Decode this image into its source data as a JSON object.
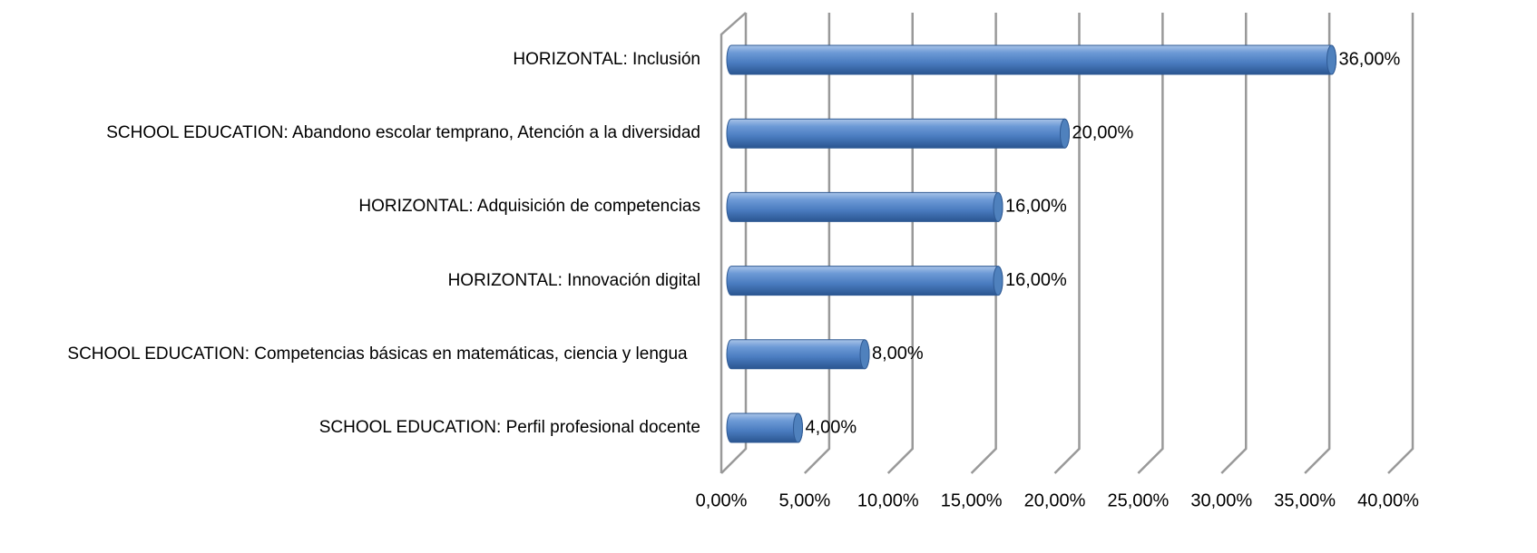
{
  "chart_data": {
    "type": "bar",
    "orientation": "horizontal",
    "categories": [
      "HORIZONTAL: Inclusión",
      "SCHOOL EDUCATION: Abandono escolar temprano, Atención a la diversidad",
      "HORIZONTAL: Adquisición de competencias",
      "HORIZONTAL: Innovación digital",
      "SCHOOL EDUCATION: Competencias básicas en matemáticas, ciencia y lengua",
      "SCHOOL EDUCATION: Perfil profesional docente"
    ],
    "values": [
      36,
      20,
      16,
      16,
      8,
      4
    ],
    "value_labels": [
      "36,00%",
      "20,00%",
      "16,00%",
      "16,00%",
      "8,00%",
      "4,00%"
    ],
    "color": "#4f81bd",
    "xlim": [
      0,
      40
    ],
    "xticks": [
      {
        "value": 0,
        "label": "0,00%"
      },
      {
        "value": 5,
        "label": "5,00%"
      },
      {
        "value": 10,
        "label": "10,00%"
      },
      {
        "value": 15,
        "label": "15,00%"
      },
      {
        "value": 20,
        "label": "20,00%"
      },
      {
        "value": 25,
        "label": "25,00%"
      },
      {
        "value": 30,
        "label": "30,00%"
      },
      {
        "value": 35,
        "label": "35,00%"
      },
      {
        "value": 40,
        "label": "40,00%"
      }
    ],
    "grid": true
  }
}
